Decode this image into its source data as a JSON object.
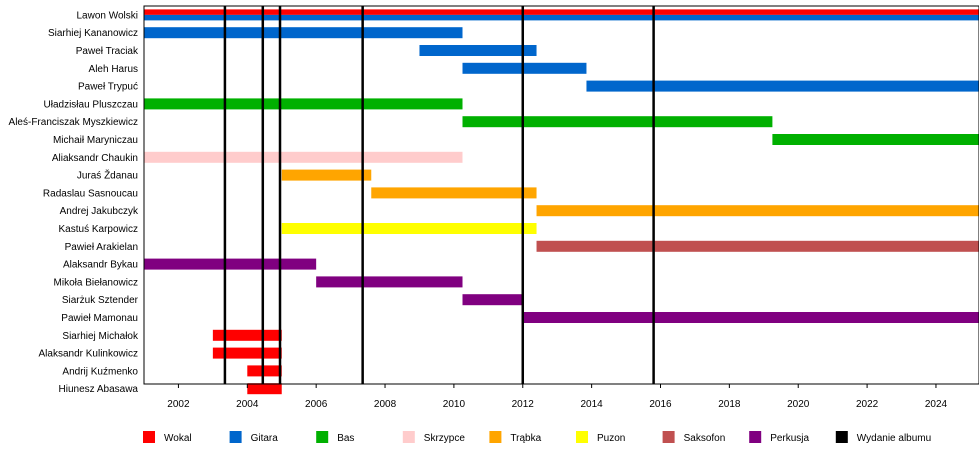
{
  "chart_data": {
    "type": "bar",
    "subtype": "timeline",
    "title": "",
    "xlabel": "",
    "ylabel": "",
    "xlim": [
      2001.0,
      2025.25
    ],
    "x_ticks": [
      2002,
      2004,
      2006,
      2008,
      2010,
      2012,
      2014,
      2016,
      2018,
      2020,
      2022,
      2024
    ],
    "grid": false,
    "legend_position": "bottom",
    "roles": [
      {
        "name": "Wokal",
        "color": "#ff0000"
      },
      {
        "name": "Gitara",
        "color": "#0066cc"
      },
      {
        "name": "Bas",
        "color": "#00b000"
      },
      {
        "name": "Skrzypce",
        "color": "#ffcccc"
      },
      {
        "name": "Trąbka",
        "color": "#ffa500"
      },
      {
        "name": "Puzon",
        "color": "#ffff00"
      },
      {
        "name": "Saksofon",
        "color": "#c05050"
      },
      {
        "name": "Perkusja",
        "color": "#800080"
      },
      {
        "name": "Wydanie albumu",
        "color": "#000000"
      }
    ],
    "members": [
      {
        "name": "Lawon Wolski",
        "bars": [
          {
            "role": "Wokal",
            "start": 2001.0,
            "end": 2025.25
          },
          {
            "role": "Gitara",
            "start": 2001.0,
            "end": 2025.25
          }
        ]
      },
      {
        "name": "Siarhiej Kananowicz",
        "bars": [
          {
            "role": "Gitara",
            "start": 2001.0,
            "end": 2010.25
          }
        ]
      },
      {
        "name": "Paweł Traciak",
        "bars": [
          {
            "role": "Gitara",
            "start": 2009.0,
            "end": 2012.4
          }
        ]
      },
      {
        "name": "Aleh Harus",
        "bars": [
          {
            "role": "Gitara",
            "start": 2010.25,
            "end": 2013.85
          }
        ]
      },
      {
        "name": "Paweł Trypuć",
        "bars": [
          {
            "role": "Gitara",
            "start": 2013.85,
            "end": 2025.25
          }
        ]
      },
      {
        "name": "Uładzisłau Pluszczau",
        "bars": [
          {
            "role": "Bas",
            "start": 2001.0,
            "end": 2010.25
          }
        ]
      },
      {
        "name": "Aleś-Franciszak Myszkiewicz",
        "bars": [
          {
            "role": "Bas",
            "start": 2010.25,
            "end": 2019.25
          }
        ]
      },
      {
        "name": "Michaił Maryniczau",
        "bars": [
          {
            "role": "Bas",
            "start": 2019.25,
            "end": 2025.25
          }
        ]
      },
      {
        "name": "Aliaksandr Chaukin",
        "bars": [
          {
            "role": "Skrzypce",
            "start": 2001.0,
            "end": 2010.25
          }
        ]
      },
      {
        "name": "Juraś Ždanau",
        "bars": [
          {
            "role": "Trąbka",
            "start": 2005.0,
            "end": 2007.6
          }
        ]
      },
      {
        "name": "Radaslau Sasnoucau",
        "bars": [
          {
            "role": "Trąbka",
            "start": 2007.6,
            "end": 2012.4
          }
        ]
      },
      {
        "name": "Andrej Jakubczyk",
        "bars": [
          {
            "role": "Trąbka",
            "start": 2012.4,
            "end": 2025.25
          }
        ]
      },
      {
        "name": "Kastuś Karpowicz",
        "bars": [
          {
            "role": "Puzon",
            "start": 2005.0,
            "end": 2012.4
          }
        ]
      },
      {
        "name": "Pawieł Arakielan",
        "bars": [
          {
            "role": "Saksofon",
            "start": 2012.4,
            "end": 2025.25
          }
        ]
      },
      {
        "name": "Alaksandr Bykau",
        "bars": [
          {
            "role": "Perkusja",
            "start": 2001.0,
            "end": 2006.0
          }
        ]
      },
      {
        "name": "Mikoła Biełanowicz",
        "bars": [
          {
            "role": "Perkusja",
            "start": 2006.0,
            "end": 2010.25
          }
        ]
      },
      {
        "name": "Siarżuk Sztender",
        "bars": [
          {
            "role": "Perkusja",
            "start": 2010.25,
            "end": 2012.0
          }
        ]
      },
      {
        "name": "Pawieł Mamonau",
        "bars": [
          {
            "role": "Perkusja",
            "start": 2012.0,
            "end": 2025.25
          }
        ]
      },
      {
        "name": "Siarhiej Michałok",
        "bars": [
          {
            "role": "Wokal",
            "start": 2003.0,
            "end": 2005.0
          }
        ]
      },
      {
        "name": "Alaksandr Kulinkowicz",
        "bars": [
          {
            "role": "Wokal",
            "start": 2003.0,
            "end": 2005.0
          }
        ]
      },
      {
        "name": "Andrij Kuźmenko",
        "bars": [
          {
            "role": "Wokal",
            "start": 2004.0,
            "end": 2005.0
          }
        ]
      },
      {
        "name": "Hiunesz Abasawa",
        "bars": [
          {
            "role": "Wokal",
            "start": 2004.0,
            "end": 2005.0
          }
        ]
      }
    ],
    "album_releases": [
      2003.35,
      2004.45,
      2004.95,
      2007.35,
      2012.0,
      2015.8
    ]
  }
}
